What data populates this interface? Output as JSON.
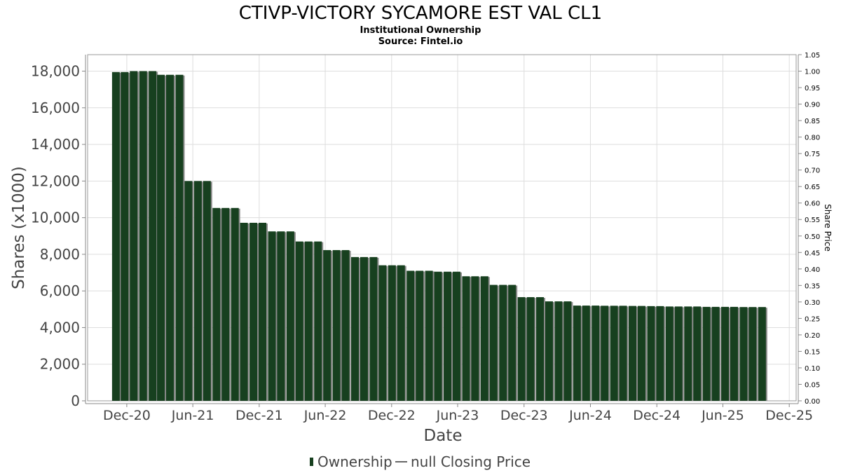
{
  "chart_data": {
    "type": "bar",
    "title": "CTIVP-VICTORY SYCAMORE EST VAL CL1",
    "subtitle_lines": [
      "Institutional Ownership",
      "Source: Fintel.io"
    ],
    "xlabel": "Date",
    "ylabel": "Shares (x1000)",
    "y2label": "Share Price",
    "ylim": [
      0,
      18900
    ],
    "yticks": [
      0,
      2000,
      4000,
      6000,
      8000,
      10000,
      12000,
      14000,
      16000,
      18000
    ],
    "ytick_labels": [
      "0",
      "2,000",
      "4,000",
      "6,000",
      "8,000",
      "10,000",
      "12,000",
      "14,000",
      "16,000",
      "18,000"
    ],
    "y2lim": [
      0,
      1.05
    ],
    "y2ticks": [
      0.0,
      0.05,
      0.1,
      0.15,
      0.2,
      0.25,
      0.3,
      0.35,
      0.4,
      0.45,
      0.5,
      0.55,
      0.6,
      0.65,
      0.7,
      0.75,
      0.8,
      0.85,
      0.9,
      0.95,
      1.0,
      1.05
    ],
    "y2tick_labels": [
      "0.00",
      "0.05",
      "0.10",
      "0.15",
      "0.20",
      "0.25",
      "0.30",
      "0.35",
      "0.40",
      "0.45",
      "0.50",
      "0.55",
      "0.60",
      "0.65",
      "0.70",
      "0.75",
      "0.80",
      "0.85",
      "0.90",
      "0.95",
      "1.00",
      "1.05"
    ],
    "x_tick_dates": [
      "2020-12-01",
      "2021-06-01",
      "2021-12-01",
      "2022-06-01",
      "2022-12-01",
      "2023-06-01",
      "2023-12-01",
      "2024-06-01",
      "2024-12-01",
      "2025-06-01",
      "2025-12-01"
    ],
    "x_tick_labels": [
      "Dec-20",
      "Jun-21",
      "Dec-21",
      "Jun-22",
      "Dec-22",
      "Jun-23",
      "Dec-23",
      "Jun-24",
      "Dec-24",
      "Jun-25",
      "Dec-25"
    ],
    "xlim": [
      "2020-08-15",
      "2025-12-20"
    ],
    "grid": true,
    "legend_position": "bottom",
    "series": [
      {
        "name": "Ownership",
        "color": "#17401f",
        "x": [
          "2020-11-01",
          "2020-11-25",
          "2020-12-20",
          "2021-01-15",
          "2021-02-10",
          "2021-03-05",
          "2021-03-30",
          "2021-04-25",
          "2021-05-20",
          "2021-06-15",
          "2021-07-10",
          "2021-08-05",
          "2021-08-30",
          "2021-09-25",
          "2021-10-20",
          "2021-11-15",
          "2021-12-10",
          "2022-01-05",
          "2022-01-30",
          "2022-02-25",
          "2022-03-22",
          "2022-04-16",
          "2022-05-12",
          "2022-06-06",
          "2022-07-02",
          "2022-07-27",
          "2022-08-22",
          "2022-09-16",
          "2022-10-12",
          "2022-11-06",
          "2022-12-02",
          "2022-12-27",
          "2023-01-22",
          "2023-02-16",
          "2023-03-14",
          "2023-04-08",
          "2023-05-04",
          "2023-05-29",
          "2023-06-24",
          "2023-07-19",
          "2023-08-14",
          "2023-09-08",
          "2023-10-04",
          "2023-10-29",
          "2023-11-24",
          "2023-12-19",
          "2024-01-14",
          "2024-02-08",
          "2024-03-05",
          "2024-03-30",
          "2024-04-25",
          "2024-05-20",
          "2024-06-15",
          "2024-07-10",
          "2024-08-05",
          "2024-08-30",
          "2024-09-25",
          "2024-10-20",
          "2024-11-15",
          "2024-12-10",
          "2025-01-05",
          "2025-01-30",
          "2025-02-25",
          "2025-03-22",
          "2025-04-17",
          "2025-05-12",
          "2025-06-07",
          "2025-07-02",
          "2025-07-28",
          "2025-08-22",
          "2025-09-17"
        ],
        "values": [
          17950,
          17950,
          18000,
          18000,
          18000,
          17800,
          17800,
          17800,
          12000,
          12000,
          12000,
          10530,
          10530,
          10530,
          9720,
          9720,
          9720,
          9250,
          9250,
          9250,
          8700,
          8700,
          8700,
          8230,
          8230,
          8230,
          7850,
          7850,
          7850,
          7400,
          7400,
          7400,
          7100,
          7100,
          7100,
          7050,
          7050,
          7050,
          6800,
          6800,
          6800,
          6330,
          6330,
          6330,
          5660,
          5660,
          5660,
          5430,
          5430,
          5430,
          5200,
          5200,
          5200,
          5190,
          5190,
          5190,
          5180,
          5180,
          5170,
          5170,
          5150,
          5150,
          5150,
          5150,
          5130,
          5130,
          5130,
          5130,
          5120,
          5120,
          5120
        ]
      },
      {
        "name": "null Closing Price",
        "color": "#333333",
        "values": []
      }
    ]
  }
}
